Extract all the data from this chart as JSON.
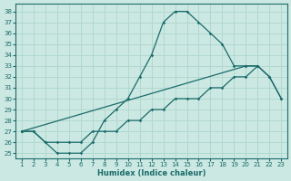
{
  "xlabel": "Humidex (Indice chaleur)",
  "bg_color": "#cce8e2",
  "grid_color": "#b0d8d0",
  "line_color": "#1a6b6b",
  "xlim": [
    0.5,
    23.5
  ],
  "ylim": [
    24.5,
    38.7
  ],
  "xticks": [
    1,
    2,
    3,
    4,
    5,
    6,
    7,
    8,
    9,
    10,
    11,
    12,
    13,
    14,
    15,
    16,
    17,
    18,
    19,
    20,
    21,
    22,
    23
  ],
  "yticks": [
    25,
    26,
    27,
    28,
    29,
    30,
    31,
    32,
    33,
    34,
    35,
    36,
    37,
    38
  ],
  "curve1_x": [
    1,
    2,
    3,
    4,
    5,
    6,
    7,
    8,
    9,
    10,
    11,
    12,
    13,
    14,
    15,
    16,
    17,
    18,
    19,
    20,
    21
  ],
  "curve1_y": [
    27,
    27,
    26,
    25,
    25,
    25,
    26,
    28,
    29,
    30,
    32,
    34,
    37,
    38,
    38,
    37,
    36,
    35,
    33,
    33,
    33
  ],
  "curve2_x": [
    1,
    20,
    21,
    22,
    23
  ],
  "curve2_y": [
    27,
    33,
    33,
    32,
    30
  ],
  "curve3_x": [
    1,
    2,
    3,
    4,
    5,
    6,
    7,
    8,
    9,
    10,
    11,
    12,
    13,
    14,
    15,
    16,
    17,
    18,
    19,
    20,
    21,
    22,
    23
  ],
  "curve3_y": [
    27,
    27,
    26,
    26,
    26,
    26,
    27,
    27,
    27,
    28,
    28,
    29,
    29,
    30,
    30,
    30,
    31,
    31,
    32,
    32,
    33,
    32,
    30
  ]
}
